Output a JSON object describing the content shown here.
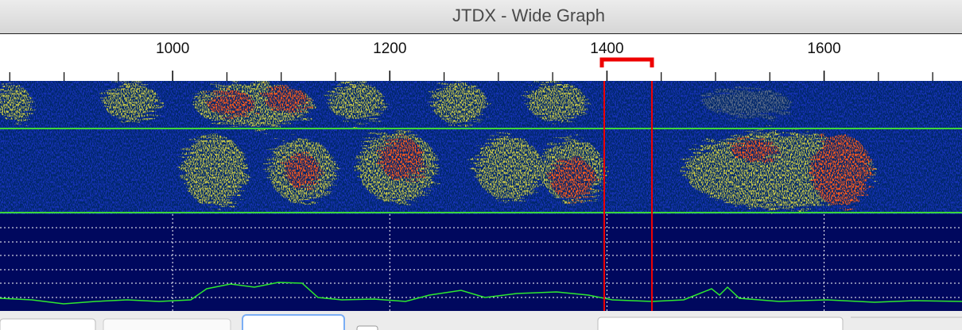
{
  "window": {
    "title": "JTDX - Wide Graph"
  },
  "frequency_axis": {
    "xlim": [
      841,
      1727
    ],
    "xticks": [
      1000,
      1200,
      1400,
      1600
    ],
    "minor_ticks": [
      850,
      900,
      950,
      1050,
      1100,
      1150,
      1250,
      1300,
      1350,
      1450,
      1500,
      1550,
      1650,
      1700
    ]
  }
}
